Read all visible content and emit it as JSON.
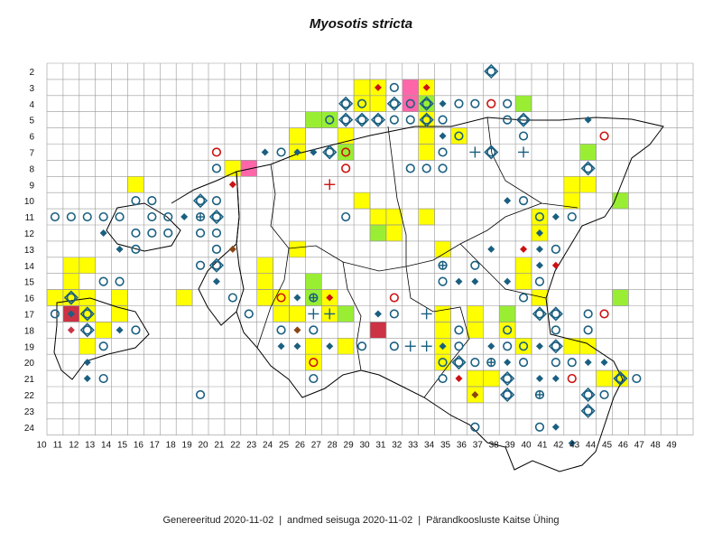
{
  "title": "Myosotis stricta",
  "footer": {
    "generated": "Genereeritud 2020-11-02",
    "data_state": "andmed seisuga 2020-11-02",
    "org": "Pärandkoosluste Kaitse Ühing"
  },
  "grid": {
    "columns": [
      "10",
      "11",
      "12",
      "13",
      "14",
      "15",
      "16",
      "17",
      "18",
      "19",
      "20",
      "21",
      "22",
      "23",
      "24",
      "25",
      "26",
      "27",
      "28",
      "29",
      "30",
      "31",
      "32",
      "33",
      "34",
      "35",
      "36",
      "37",
      "38",
      "39",
      "40",
      "41",
      "42",
      "43",
      "44",
      "45",
      "46",
      "47",
      "48",
      "49"
    ],
    "rows": [
      "2",
      "3",
      "4",
      "5",
      "6",
      "7",
      "8",
      "9",
      "10",
      "11",
      "12",
      "13",
      "14",
      "15",
      "16",
      "17",
      "18",
      "19",
      "20",
      "21",
      "22",
      "23",
      "24"
    ]
  },
  "colors": {
    "yellow": "#ffff00",
    "green": "#99ee33",
    "pink": "#ff66aa",
    "darkred": "#cc3344",
    "blue": "#1a5f80",
    "red": "#cc1111",
    "brown": "#8b4513",
    "grid": "#999999",
    "border": "#000000"
  },
  "cells": [
    {
      "c": 29,
      "r": 3,
      "fill": "yellow"
    },
    {
      "c": 30,
      "r": 3,
      "fill": "yellow"
    },
    {
      "c": 32,
      "r": 3,
      "fill": "pink"
    },
    {
      "c": 33,
      "r": 3,
      "fill": "yellow"
    },
    {
      "c": 29,
      "r": 4,
      "fill": "yellow"
    },
    {
      "c": 30,
      "r": 4,
      "fill": "yellow"
    },
    {
      "c": 32,
      "r": 4,
      "fill": "pink"
    },
    {
      "c": 33,
      "r": 4,
      "fill": "green"
    },
    {
      "c": 39,
      "r": 4,
      "fill": "green"
    },
    {
      "c": 27,
      "r": 5,
      "fill": "green"
    },
    {
      "c": 26,
      "r": 5,
      "fill": "green"
    },
    {
      "c": 33,
      "r": 5,
      "fill": "yellow"
    },
    {
      "c": 25,
      "r": 6,
      "fill": "yellow"
    },
    {
      "c": 28,
      "r": 6,
      "fill": "yellow"
    },
    {
      "c": 33,
      "r": 6,
      "fill": "yellow"
    },
    {
      "c": 35,
      "r": 6,
      "fill": "yellow"
    },
    {
      "c": 25,
      "r": 7,
      "fill": "yellow"
    },
    {
      "c": 28,
      "r": 7,
      "fill": "green"
    },
    {
      "c": 33,
      "r": 7,
      "fill": "yellow"
    },
    {
      "c": 43,
      "r": 7,
      "fill": "green"
    },
    {
      "c": 21,
      "r": 8,
      "fill": "yellow"
    },
    {
      "c": 22,
      "r": 8,
      "fill": "pink"
    },
    {
      "c": 15,
      "r": 9,
      "fill": "yellow"
    },
    {
      "c": 42,
      "r": 9,
      "fill": "yellow"
    },
    {
      "c": 43,
      "r": 9,
      "fill": "yellow"
    },
    {
      "c": 29,
      "r": 10,
      "fill": "yellow"
    },
    {
      "c": 42,
      "r": 10,
      "fill": "yellow"
    },
    {
      "c": 45,
      "r": 10,
      "fill": "green"
    },
    {
      "c": 30,
      "r": 11,
      "fill": "yellow"
    },
    {
      "c": 31,
      "r": 11,
      "fill": "yellow"
    },
    {
      "c": 33,
      "r": 11,
      "fill": "yellow"
    },
    {
      "c": 40,
      "r": 11,
      "fill": "yellow"
    },
    {
      "c": 30,
      "r": 12,
      "fill": "green"
    },
    {
      "c": 31,
      "r": 12,
      "fill": "yellow"
    },
    {
      "c": 40,
      "r": 12,
      "fill": "yellow"
    },
    {
      "c": 25,
      "r": 13,
      "fill": "yellow"
    },
    {
      "c": 34,
      "r": 13,
      "fill": "yellow"
    },
    {
      "c": 11,
      "r": 14,
      "fill": "yellow"
    },
    {
      "c": 12,
      "r": 14,
      "fill": "yellow"
    },
    {
      "c": 23,
      "r": 14,
      "fill": "yellow"
    },
    {
      "c": 39,
      "r": 14,
      "fill": "yellow"
    },
    {
      "c": 11,
      "r": 15,
      "fill": "yellow"
    },
    {
      "c": 23,
      "r": 15,
      "fill": "yellow"
    },
    {
      "c": 26,
      "r": 15,
      "fill": "green"
    },
    {
      "c": 39,
      "r": 15,
      "fill": "yellow"
    },
    {
      "c": 10,
      "r": 16,
      "fill": "yellow"
    },
    {
      "c": 11,
      "r": 16,
      "fill": "yellow"
    },
    {
      "c": 12,
      "r": 16,
      "fill": "yellow"
    },
    {
      "c": 14,
      "r": 16,
      "fill": "yellow"
    },
    {
      "c": 18,
      "r": 16,
      "fill": "yellow"
    },
    {
      "c": 23,
      "r": 16,
      "fill": "yellow"
    },
    {
      "c": 24,
      "r": 16,
      "fill": "yellow"
    },
    {
      "c": 26,
      "r": 16,
      "fill": "green"
    },
    {
      "c": 27,
      "r": 16,
      "fill": "yellow"
    },
    {
      "c": 40,
      "r": 16,
      "fill": "yellow"
    },
    {
      "c": 45,
      "r": 16,
      "fill": "green"
    },
    {
      "c": 11,
      "r": 17,
      "fill": "darkred"
    },
    {
      "c": 12,
      "r": 17,
      "fill": "yellow"
    },
    {
      "c": 14,
      "r": 17,
      "fill": "yellow"
    },
    {
      "c": 24,
      "r": 17,
      "fill": "yellow"
    },
    {
      "c": 25,
      "r": 17,
      "fill": "yellow"
    },
    {
      "c": 27,
      "r": 17,
      "fill": "yellow"
    },
    {
      "c": 28,
      "r": 17,
      "fill": "green"
    },
    {
      "c": 34,
      "r": 17,
      "fill": "yellow"
    },
    {
      "c": 36,
      "r": 17,
      "fill": "yellow"
    },
    {
      "c": 38,
      "r": 17,
      "fill": "green"
    },
    {
      "c": 13,
      "r": 18,
      "fill": "yellow"
    },
    {
      "c": 30,
      "r": 18,
      "fill": "darkred"
    },
    {
      "c": 34,
      "r": 18,
      "fill": "yellow"
    },
    {
      "c": 36,
      "r": 18,
      "fill": "yellow"
    },
    {
      "c": 38,
      "r": 18,
      "fill": "yellow"
    },
    {
      "c": 12,
      "r": 19,
      "fill": "yellow"
    },
    {
      "c": 26,
      "r": 19,
      "fill": "yellow"
    },
    {
      "c": 28,
      "r": 19,
      "fill": "yellow"
    },
    {
      "c": 34,
      "r": 19,
      "fill": "yellow"
    },
    {
      "c": 39,
      "r": 19,
      "fill": "yellow"
    },
    {
      "c": 42,
      "r": 19,
      "fill": "yellow"
    },
    {
      "c": 43,
      "r": 19,
      "fill": "yellow"
    },
    {
      "c": 26,
      "r": 20,
      "fill": "yellow"
    },
    {
      "c": 34,
      "r": 20,
      "fill": "yellow"
    },
    {
      "c": 36,
      "r": 21,
      "fill": "yellow"
    },
    {
      "c": 37,
      "r": 21,
      "fill": "yellow"
    },
    {
      "c": 44,
      "r": 21,
      "fill": "yellow"
    },
    {
      "c": 45,
      "r": 21,
      "fill": "yellow"
    },
    {
      "c": 36,
      "r": 22,
      "fill": "yellow"
    }
  ],
  "markers": [
    {
      "c": 37,
      "r": 2,
      "type": "ring-diamond"
    },
    {
      "c": 30,
      "r": 3,
      "type": "diamond-red"
    },
    {
      "c": 31,
      "r": 3,
      "type": "circle"
    },
    {
      "c": 33,
      "r": 3,
      "type": "diamond-red"
    },
    {
      "c": 28,
      "r": 4,
      "type": "ring-diamond"
    },
    {
      "c": 29,
      "r": 4,
      "type": "circle"
    },
    {
      "c": 31,
      "r": 4,
      "type": "ring-diamond"
    },
    {
      "c": 32,
      "r": 4,
      "type": "circle"
    },
    {
      "c": 33,
      "r": 4,
      "type": "ring-diamond"
    },
    {
      "c": 34,
      "r": 4,
      "type": "diamond"
    },
    {
      "c": 35,
      "r": 4,
      "type": "circle"
    },
    {
      "c": 36,
      "r": 4,
      "type": "circle"
    },
    {
      "c": 37,
      "r": 4,
      "type": "circle-red"
    },
    {
      "c": 38,
      "r": 4,
      "type": "circle"
    },
    {
      "c": 27,
      "r": 5,
      "type": "circle"
    },
    {
      "c": 28,
      "r": 5,
      "type": "ring-diamond"
    },
    {
      "c": 29,
      "r": 5,
      "type": "ring-diamond"
    },
    {
      "c": 30,
      "r": 5,
      "type": "ring-diamond"
    },
    {
      "c": 31,
      "r": 5,
      "type": "circle"
    },
    {
      "c": 32,
      "r": 5,
      "type": "circle"
    },
    {
      "c": 33,
      "r": 5,
      "type": "ring-diamond"
    },
    {
      "c": 34,
      "r": 5,
      "type": "circle"
    },
    {
      "c": 38,
      "r": 5,
      "type": "circle"
    },
    {
      "c": 39,
      "r": 5,
      "type": "ring-diamond"
    },
    {
      "c": 43,
      "r": 5,
      "type": "diamond"
    },
    {
      "c": 34,
      "r": 6,
      "type": "diamond"
    },
    {
      "c": 35,
      "r": 6,
      "type": "circle"
    },
    {
      "c": 39,
      "r": 6,
      "type": "circle"
    },
    {
      "c": 44,
      "r": 6,
      "type": "circle-red"
    },
    {
      "c": 23,
      "r": 7,
      "type": "diamond"
    },
    {
      "c": 24,
      "r": 7,
      "type": "circle"
    },
    {
      "c": 25,
      "r": 7,
      "type": "diamond"
    },
    {
      "c": 26,
      "r": 7,
      "type": "diamond"
    },
    {
      "c": 27,
      "r": 7,
      "type": "ring-diamond"
    },
    {
      "c": 28,
      "r": 7,
      "type": "circle-red"
    },
    {
      "c": 34,
      "r": 7,
      "type": "circle"
    },
    {
      "c": 36,
      "r": 7,
      "type": "plus"
    },
    {
      "c": 37,
      "r": 7,
      "type": "ring-diamond"
    },
    {
      "c": 39,
      "r": 7,
      "type": "plus"
    },
    {
      "c": 20,
      "r": 7,
      "type": "circle-red"
    },
    {
      "c": 20,
      "r": 8,
      "type": "circle"
    },
    {
      "c": 28,
      "r": 8,
      "type": "circle-red"
    },
    {
      "c": 32,
      "r": 8,
      "type": "circle"
    },
    {
      "c": 33,
      "r": 8,
      "type": "circle"
    },
    {
      "c": 34,
      "r": 8,
      "type": "circle"
    },
    {
      "c": 43,
      "r": 8,
      "type": "ring-diamond"
    },
    {
      "c": 21,
      "r": 9,
      "type": "diamond-red"
    },
    {
      "c": 27,
      "r": 9,
      "type": "plus-red"
    },
    {
      "c": 15,
      "r": 10,
      "type": "circle"
    },
    {
      "c": 16,
      "r": 10,
      "type": "circle"
    },
    {
      "c": 19,
      "r": 10,
      "type": "ring-diamond"
    },
    {
      "c": 20,
      "r": 10,
      "type": "circle"
    },
    {
      "c": 38,
      "r": 10,
      "type": "diamond"
    },
    {
      "c": 39,
      "r": 10,
      "type": "circle"
    },
    {
      "c": 10,
      "r": 11,
      "type": "circle"
    },
    {
      "c": 11,
      "r": 11,
      "type": "circle"
    },
    {
      "c": 12,
      "r": 11,
      "type": "circle"
    },
    {
      "c": 13,
      "r": 11,
      "type": "circle"
    },
    {
      "c": 14,
      "r": 11,
      "type": "circle"
    },
    {
      "c": 16,
      "r": 11,
      "type": "circle"
    },
    {
      "c": 17,
      "r": 11,
      "type": "circle"
    },
    {
      "c": 18,
      "r": 11,
      "type": "diamond"
    },
    {
      "c": 19,
      "r": 11,
      "type": "ring-cross"
    },
    {
      "c": 20,
      "r": 11,
      "type": "ring-diamond"
    },
    {
      "c": 28,
      "r": 11,
      "type": "circle"
    },
    {
      "c": 40,
      "r": 11,
      "type": "circle"
    },
    {
      "c": 41,
      "r": 11,
      "type": "diamond"
    },
    {
      "c": 42,
      "r": 11,
      "type": "circle"
    },
    {
      "c": 13,
      "r": 12,
      "type": "diamond"
    },
    {
      "c": 15,
      "r": 12,
      "type": "circle"
    },
    {
      "c": 16,
      "r": 12,
      "type": "circle"
    },
    {
      "c": 17,
      "r": 12,
      "type": "circle"
    },
    {
      "c": 19,
      "r": 12,
      "type": "circle"
    },
    {
      "c": 20,
      "r": 12,
      "type": "circle"
    },
    {
      "c": 40,
      "r": 12,
      "type": "diamond"
    },
    {
      "c": 14,
      "r": 13,
      "type": "diamond"
    },
    {
      "c": 15,
      "r": 13,
      "type": "circle"
    },
    {
      "c": 20,
      "r": 13,
      "type": "circle"
    },
    {
      "c": 21,
      "r": 13,
      "type": "diamond-brown"
    },
    {
      "c": 37,
      "r": 13,
      "type": "diamond"
    },
    {
      "c": 39,
      "r": 13,
      "type": "diamond-red"
    },
    {
      "c": 40,
      "r": 13,
      "type": "diamond"
    },
    {
      "c": 41,
      "r": 13,
      "type": "circle"
    },
    {
      "c": 19,
      "r": 14,
      "type": "circle"
    },
    {
      "c": 20,
      "r": 14,
      "type": "ring-diamond"
    },
    {
      "c": 34,
      "r": 14,
      "type": "ring-cross"
    },
    {
      "c": 36,
      "r": 14,
      "type": "circle"
    },
    {
      "c": 40,
      "r": 14,
      "type": "diamond"
    },
    {
      "c": 41,
      "r": 14,
      "type": "diamond-red"
    },
    {
      "c": 13,
      "r": 15,
      "type": "circle"
    },
    {
      "c": 14,
      "r": 15,
      "type": "circle"
    },
    {
      "c": 20,
      "r": 15,
      "type": "diamond"
    },
    {
      "c": 34,
      "r": 15,
      "type": "circle"
    },
    {
      "c": 35,
      "r": 15,
      "type": "diamond"
    },
    {
      "c": 36,
      "r": 15,
      "type": "diamond"
    },
    {
      "c": 38,
      "r": 15,
      "type": "diamond"
    },
    {
      "c": 40,
      "r": 15,
      "type": "circle"
    },
    {
      "c": 11,
      "r": 16,
      "type": "ring-diamond"
    },
    {
      "c": 21,
      "r": 16,
      "type": "circle"
    },
    {
      "c": 24,
      "r": 16,
      "type": "circle-red"
    },
    {
      "c": 25,
      "r": 16,
      "type": "diamond"
    },
    {
      "c": 26,
      "r": 16,
      "type": "ring-cross"
    },
    {
      "c": 27,
      "r": 16,
      "type": "diamond-red"
    },
    {
      "c": 31,
      "r": 16,
      "type": "circle-red"
    },
    {
      "c": 39,
      "r": 16,
      "type": "circle"
    },
    {
      "c": 10,
      "r": 17,
      "type": "circle"
    },
    {
      "c": 11,
      "r": 17,
      "type": "diamond"
    },
    {
      "c": 12,
      "r": 17,
      "type": "ring-diamond"
    },
    {
      "c": 22,
      "r": 17,
      "type": "circle"
    },
    {
      "c": 26,
      "r": 17,
      "type": "plus"
    },
    {
      "c": 27,
      "r": 17,
      "type": "plus"
    },
    {
      "c": 30,
      "r": 17,
      "type": "diamond"
    },
    {
      "c": 31,
      "r": 17,
      "type": "circle"
    },
    {
      "c": 33,
      "r": 17,
      "type": "plus"
    },
    {
      "c": 40,
      "r": 17,
      "type": "ring-diamond"
    },
    {
      "c": 41,
      "r": 17,
      "type": "ring-diamond"
    },
    {
      "c": 43,
      "r": 17,
      "type": "circle"
    },
    {
      "c": 44,
      "r": 17,
      "type": "circle-red"
    },
    {
      "c": 11,
      "r": 18,
      "type": "diamond-darkred"
    },
    {
      "c": 12,
      "r": 18,
      "type": "ring-diamond"
    },
    {
      "c": 14,
      "r": 18,
      "type": "diamond"
    },
    {
      "c": 15,
      "r": 18,
      "type": "circle"
    },
    {
      "c": 24,
      "r": 18,
      "type": "circle"
    },
    {
      "c": 25,
      "r": 18,
      "type": "diamond-brown"
    },
    {
      "c": 26,
      "r": 18,
      "type": "circle"
    },
    {
      "c": 35,
      "r": 18,
      "type": "circle"
    },
    {
      "c": 38,
      "r": 18,
      "type": "circle"
    },
    {
      "c": 41,
      "r": 18,
      "type": "circle"
    },
    {
      "c": 43,
      "r": 18,
      "type": "circle"
    },
    {
      "c": 13,
      "r": 19,
      "type": "circle"
    },
    {
      "c": 24,
      "r": 19,
      "type": "diamond"
    },
    {
      "c": 25,
      "r": 19,
      "type": "diamond"
    },
    {
      "c": 27,
      "r": 19,
      "type": "diamond"
    },
    {
      "c": 29,
      "r": 19,
      "type": "circle"
    },
    {
      "c": 31,
      "r": 19,
      "type": "circle"
    },
    {
      "c": 32,
      "r": 19,
      "type": "plus"
    },
    {
      "c": 33,
      "r": 19,
      "type": "plus"
    },
    {
      "c": 34,
      "r": 19,
      "type": "diamond"
    },
    {
      "c": 35,
      "r": 19,
      "type": "circle"
    },
    {
      "c": 37,
      "r": 19,
      "type": "diamond"
    },
    {
      "c": 38,
      "r": 19,
      "type": "circle"
    },
    {
      "c": 39,
      "r": 19,
      "type": "circle"
    },
    {
      "c": 40,
      "r": 19,
      "type": "diamond"
    },
    {
      "c": 41,
      "r": 19,
      "type": "ring-diamond"
    },
    {
      "c": 12,
      "r": 20,
      "type": "diamond"
    },
    {
      "c": 26,
      "r": 20,
      "type": "circle-red"
    },
    {
      "c": 34,
      "r": 20,
      "type": "circle"
    },
    {
      "c": 35,
      "r": 20,
      "type": "ring-diamond"
    },
    {
      "c": 36,
      "r": 20,
      "type": "circle"
    },
    {
      "c": 37,
      "r": 20,
      "type": "ring-cross"
    },
    {
      "c": 38,
      "r": 20,
      "type": "diamond"
    },
    {
      "c": 39,
      "r": 20,
      "type": "circle"
    },
    {
      "c": 41,
      "r": 20,
      "type": "circle"
    },
    {
      "c": 42,
      "r": 20,
      "type": "circle"
    },
    {
      "c": 43,
      "r": 20,
      "type": "diamond"
    },
    {
      "c": 44,
      "r": 20,
      "type": "diamond"
    },
    {
      "c": 12,
      "r": 21,
      "type": "diamond"
    },
    {
      "c": 13,
      "r": 21,
      "type": "circle"
    },
    {
      "c": 26,
      "r": 21,
      "type": "circle"
    },
    {
      "c": 34,
      "r": 21,
      "type": "circle"
    },
    {
      "c": 35,
      "r": 21,
      "type": "diamond-red"
    },
    {
      "c": 38,
      "r": 21,
      "type": "ring-diamond"
    },
    {
      "c": 40,
      "r": 21,
      "type": "diamond"
    },
    {
      "c": 41,
      "r": 21,
      "type": "diamond"
    },
    {
      "c": 42,
      "r": 21,
      "type": "circle-red"
    },
    {
      "c": 45,
      "r": 21,
      "type": "ring-diamond"
    },
    {
      "c": 46,
      "r": 21,
      "type": "circle"
    },
    {
      "c": 36,
      "r": 22,
      "type": "diamond-brown"
    },
    {
      "c": 38,
      "r": 22,
      "type": "ring-diamond"
    },
    {
      "c": 40,
      "r": 22,
      "type": "ring-cross"
    },
    {
      "c": 43,
      "r": 22,
      "type": "ring-diamond"
    },
    {
      "c": 44,
      "r": 22,
      "type": "circle"
    },
    {
      "c": 19,
      "r": 22,
      "type": "circle"
    },
    {
      "c": 43,
      "r": 23,
      "type": "ring-diamond"
    },
    {
      "c": 36,
      "r": 24,
      "type": "circle"
    },
    {
      "c": 40,
      "r": 24,
      "type": "circle"
    },
    {
      "c": 41,
      "r": 24,
      "type": "diamond"
    },
    {
      "c": 42,
      "r": 25,
      "type": "diamond"
    }
  ]
}
